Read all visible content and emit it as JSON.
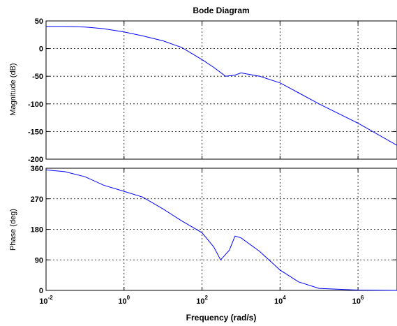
{
  "chart_data": [
    {
      "type": "line",
      "title": "Bode Diagram",
      "ylabel": "Magnitude (dB)",
      "xlabel": "",
      "x_scale": "log",
      "xlim": [
        0.01,
        10000000
      ],
      "ylim": [
        -200,
        50
      ],
      "grid": true,
      "x_ticks": [
        0.01,
        1,
        100,
        10000,
        1000000
      ],
      "x_tick_labels": [],
      "y_ticks": [
        50,
        0,
        -50,
        -100,
        -150,
        -200
      ],
      "y_tick_labels": [
        "50",
        "0",
        "-50",
        "-100",
        "-150",
        "-200"
      ],
      "line_color": "#0000ff",
      "series": [
        {
          "x": [
            0.01,
            0.03,
            0.1,
            0.3,
            1,
            3,
            10,
            30,
            100,
            200,
            400,
            700,
            1000,
            3000,
            10000,
            30000,
            100000,
            1000000,
            10000000
          ],
          "y": [
            40,
            40,
            39,
            36,
            30,
            23,
            14,
            2,
            -20,
            -34,
            -50,
            -48,
            -44,
            -50,
            -62,
            -80,
            -100,
            -135,
            -175
          ]
        }
      ]
    },
    {
      "type": "line",
      "title": "",
      "ylabel": "Phase (deg)",
      "xlabel": "Frequency  (rad/s)",
      "x_scale": "log",
      "xlim": [
        0.01,
        10000000
      ],
      "ylim": [
        0,
        360
      ],
      "grid": true,
      "x_ticks": [
        0.01,
        1,
        100,
        10000,
        1000000
      ],
      "x_tick_labels": [
        {
          "base": "10",
          "exp": "-2"
        },
        {
          "base": "10",
          "exp": "0"
        },
        {
          "base": "10",
          "exp": "2"
        },
        {
          "base": "10",
          "exp": "4"
        },
        {
          "base": "10",
          "exp": "6"
        }
      ],
      "y_ticks": [
        360,
        270,
        180,
        90,
        0
      ],
      "y_tick_labels": [
        "360",
        "270",
        "180",
        "90",
        "0"
      ],
      "line_color": "#0000ff",
      "series": [
        {
          "x": [
            0.01,
            0.03,
            0.1,
            0.3,
            1,
            3,
            10,
            30,
            100,
            200,
            300,
            500,
            700,
            1000,
            3000,
            10000,
            30000,
            100000,
            1000000,
            10000000
          ],
          "y": [
            355,
            350,
            335,
            310,
            292,
            275,
            240,
            205,
            170,
            128,
            90,
            118,
            160,
            155,
            115,
            60,
            25,
            6,
            1,
            0
          ]
        }
      ]
    }
  ]
}
